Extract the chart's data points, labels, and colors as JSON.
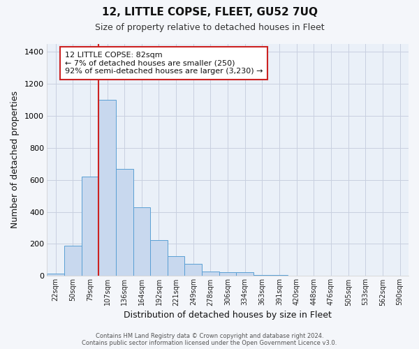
{
  "title": "12, LITTLE COPSE, FLEET, GU52 7UQ",
  "subtitle": "Size of property relative to detached houses in Fleet",
  "xlabel": "Distribution of detached houses by size in Fleet",
  "ylabel": "Number of detached properties",
  "bar_labels": [
    "22sqm",
    "50sqm",
    "79sqm",
    "107sqm",
    "136sqm",
    "164sqm",
    "192sqm",
    "221sqm",
    "249sqm",
    "278sqm",
    "306sqm",
    "334sqm",
    "363sqm",
    "391sqm",
    "420sqm",
    "448sqm",
    "476sqm",
    "505sqm",
    "533sqm",
    "562sqm",
    "590sqm"
  ],
  "bar_values": [
    15,
    190,
    620,
    1100,
    670,
    430,
    225,
    125,
    75,
    30,
    25,
    22,
    8,
    5,
    0,
    3,
    0,
    0,
    0,
    0,
    0
  ],
  "bar_color": "#c8d8ee",
  "bar_edge_color": "#5a9fd4",
  "grid_color": "#c8d0e0",
  "bg_color": "#eaf0f8",
  "vline_x_idx": 3,
  "vline_color": "#cc2222",
  "annotation_text": "12 LITTLE COPSE: 82sqm\n← 7% of detached houses are smaller (250)\n92% of semi-detached houses are larger (3,230) →",
  "annotation_box_color": "#ffffff",
  "annotation_box_edge_color": "#cc2222",
  "footer1": "Contains HM Land Registry data © Crown copyright and database right 2024.",
  "footer2": "Contains public sector information licensed under the Open Government Licence v3.0.",
  "ylim": [
    0,
    1450
  ],
  "fig_bg": "#f4f6fa"
}
